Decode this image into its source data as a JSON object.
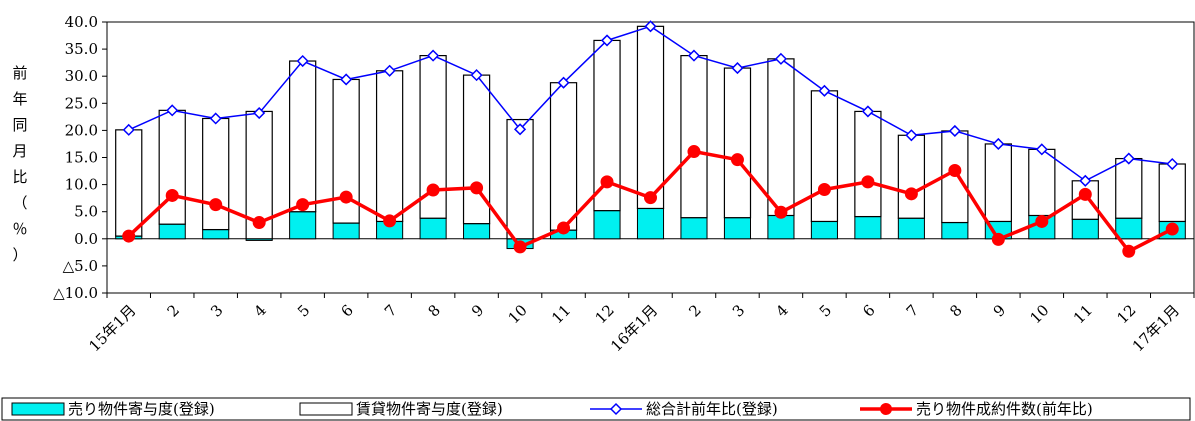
{
  "chart_data": {
    "type": "bar",
    "ylabel": "前年同月比（％）",
    "ylim": [
      -10,
      40
    ],
    "y_ticks": [
      {
        "value": 40,
        "label": "40.0"
      },
      {
        "value": 35,
        "label": "35.0"
      },
      {
        "value": 30,
        "label": "30.0"
      },
      {
        "value": 25,
        "label": "25.0"
      },
      {
        "value": 20,
        "label": "20.0"
      },
      {
        "value": 15,
        "label": "15.0"
      },
      {
        "value": 10,
        "label": "10.0"
      },
      {
        "value": 5,
        "label": "5.0"
      },
      {
        "value": 0,
        "label": "0.0"
      },
      {
        "value": -5,
        "label": "△5.0"
      },
      {
        "value": -10,
        "label": "△10.0"
      }
    ],
    "categories": [
      "15年1月",
      "2",
      "3",
      "4",
      "5",
      "6",
      "7",
      "8",
      "9",
      "10",
      "11",
      "12",
      "16年1月",
      "2",
      "3",
      "4",
      "5",
      "6",
      "7",
      "8",
      "9",
      "10",
      "11",
      "12",
      "17年1月"
    ],
    "series": [
      {
        "name": "売り物件寄与度(登録)",
        "kind": "bar",
        "color": "#00f0f0",
        "values": [
          0.5,
          2.7,
          1.7,
          -0.3,
          5.0,
          2.9,
          3.2,
          3.8,
          2.8,
          -1.8,
          1.6,
          5.2,
          5.6,
          3.9,
          3.9,
          4.3,
          3.2,
          4.1,
          3.8,
          3.0,
          3.2,
          4.3,
          3.6,
          3.8,
          3.2
        ]
      },
      {
        "name": "賃貸物件寄与度(登録)",
        "kind": "bar",
        "color": "#ffffff",
        "values": [
          19.6,
          21.0,
          20.5,
          23.5,
          27.8,
          26.5,
          27.8,
          30.0,
          27.4,
          22.0,
          27.2,
          31.4,
          33.6,
          29.9,
          27.6,
          28.9,
          24.1,
          19.4,
          15.3,
          16.9,
          14.3,
          12.2,
          7.1,
          11.0,
          10.6
        ]
      },
      {
        "name": "総合計前年比(登録)",
        "kind": "line",
        "marker": "diamond",
        "color": "#0000ff",
        "values": [
          20.1,
          23.7,
          22.2,
          23.2,
          32.8,
          29.4,
          31.0,
          33.8,
          30.2,
          20.2,
          28.8,
          36.6,
          39.2,
          33.8,
          31.5,
          33.2,
          27.3,
          23.5,
          19.1,
          19.9,
          17.5,
          16.5,
          10.7,
          14.8,
          13.8
        ]
      },
      {
        "name": "売り物件成約件数(前年比)",
        "kind": "line",
        "marker": "circle",
        "color": "#ff0000",
        "values": [
          0.5,
          8.0,
          6.3,
          3.0,
          6.3,
          7.7,
          3.3,
          9.0,
          9.4,
          -1.5,
          2.0,
          10.5,
          7.6,
          16.1,
          14.6,
          4.9,
          9.1,
          10.5,
          8.3,
          12.6,
          -0.1,
          3.2,
          8.2,
          -2.3,
          1.8
        ]
      }
    ],
    "legend_position": "bottom",
    "grid": false
  }
}
